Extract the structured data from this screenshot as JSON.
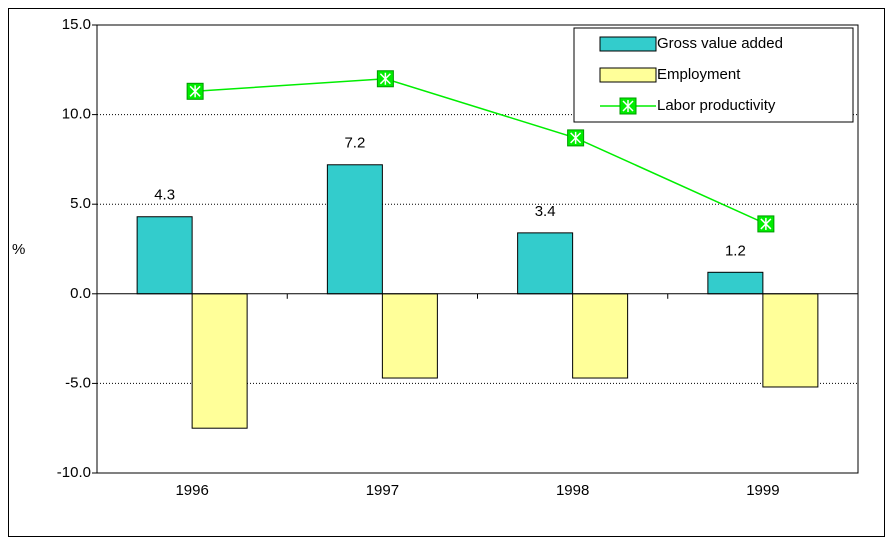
{
  "chart_data": {
    "type": "bar",
    "categories": [
      "1996",
      "1997",
      "1998",
      "1999"
    ],
    "ylabel": "%",
    "series": [
      {
        "name": "Gross value added",
        "color": "#33cccc",
        "type": "bar",
        "values": [
          4.3,
          7.2,
          3.4,
          1.2
        ],
        "show_labels": true
      },
      {
        "name": "Employment",
        "color": "#ffff99",
        "type": "bar",
        "values": [
          -7.5,
          -4.7,
          -4.7,
          -5.2
        ]
      },
      {
        "name": "Labor productivity",
        "color": "#00ee00",
        "type": "line",
        "values": [
          11.3,
          12.0,
          8.7,
          3.9
        ]
      }
    ],
    "ylim": [
      -10,
      15
    ],
    "yticks": [
      {
        "value": -10,
        "label": "-10.0"
      },
      {
        "value": -5,
        "label": "-5.0"
      },
      {
        "value": 0,
        "label": "0.0"
      },
      {
        "value": 5,
        "label": "5.0"
      },
      {
        "value": 10,
        "label": "10.0"
      },
      {
        "value": 15,
        "label": "15.0"
      }
    ],
    "grid": true,
    "legend": "top-right"
  }
}
